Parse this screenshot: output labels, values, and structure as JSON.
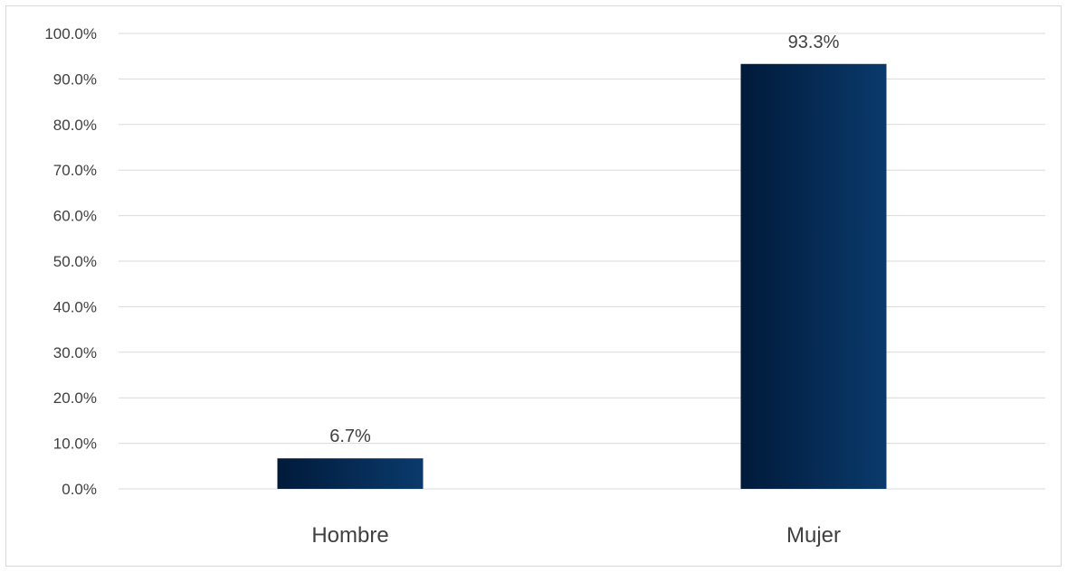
{
  "chart_data": {
    "type": "bar",
    "title": "",
    "xlabel": "",
    "ylabel": "",
    "categories": [
      "Hombre",
      "Mujer"
    ],
    "values": [
      6.7,
      93.3
    ],
    "data_labels": [
      "6.7%",
      "93.3%"
    ],
    "ylim": [
      0,
      100
    ],
    "y_ticks": [
      0,
      10,
      20,
      30,
      40,
      50,
      60,
      70,
      80,
      90,
      100
    ],
    "y_tick_labels": [
      "0.0%",
      "10.0%",
      "20.0%",
      "30.0%",
      "40.0%",
      "50.0%",
      "60.0%",
      "70.0%",
      "80.0%",
      "90.0%",
      "100.0%"
    ],
    "grid": true,
    "legend": "none",
    "bar_gradient": [
      "#011a3a",
      "#0a3a6c"
    ],
    "gridline_color": "#d9d9d9"
  }
}
